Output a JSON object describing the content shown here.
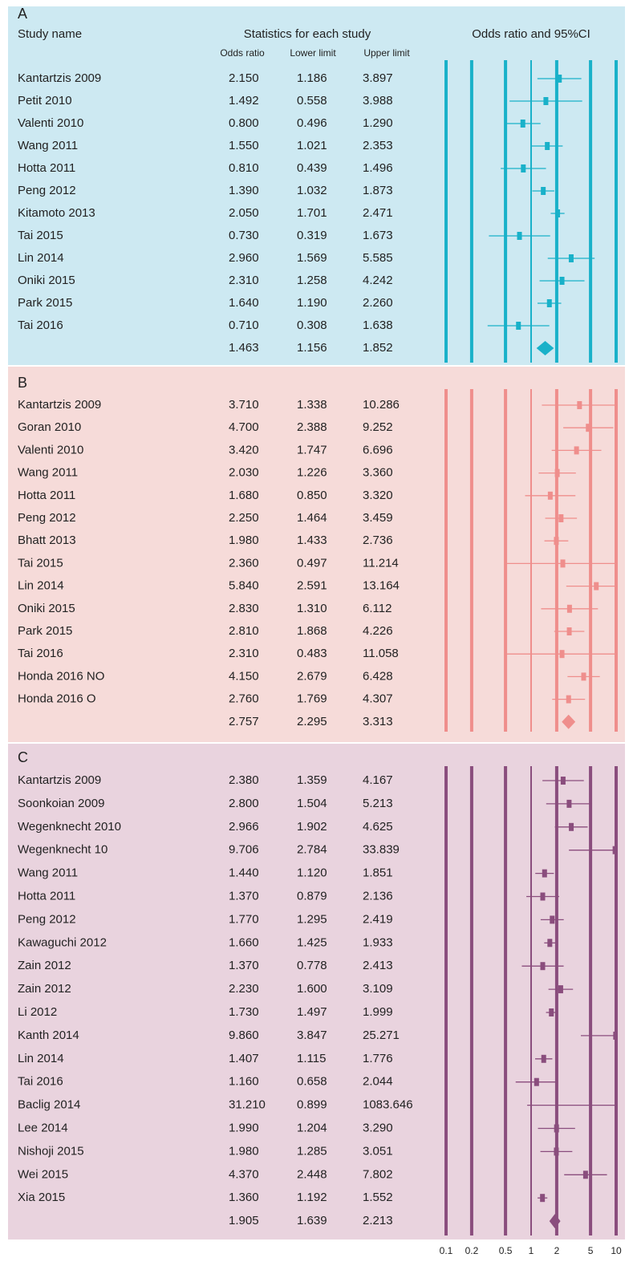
{
  "chart_data": {
    "type": "forest",
    "study_header": "Study name",
    "stats_header": "Statistics for each study",
    "plot_header": "Odds ratio and 95%CI",
    "or_header": "Odds ratio",
    "lower_header": "Lower limit",
    "upper_header": "Upper limit",
    "log_scale": true,
    "xlim": [
      0.1,
      10
    ],
    "xticks": [
      0.1,
      0.2,
      0.5,
      1,
      2,
      5,
      10
    ],
    "panels": [
      {
        "label": "A",
        "color": "#19b1c9",
        "background": "#cde9f2",
        "categories": [
          "Kantartzis 2009",
          "Petit 2010",
          "Valenti 2010",
          "Wang 2011",
          "Hotta 2011",
          "Peng 2012",
          "Kitamoto 2013",
          "Tai 2015",
          "Lin 2014",
          "Oniki 2015",
          "Park 2015",
          "Tai 2016",
          null
        ],
        "values": [
          2.15,
          1.492,
          0.8,
          1.55,
          0.81,
          1.39,
          2.05,
          0.73,
          2.96,
          2.31,
          1.64,
          0.71,
          1.463
        ],
        "value_labels": [
          "2.150",
          "1.492",
          "0.800",
          "1.550",
          "0.810",
          "1.390",
          "2.050",
          "0.730",
          "2.960",
          "2.310",
          "1.640",
          "0.710",
          "1.463"
        ],
        "lower": [
          1.186,
          0.558,
          0.496,
          1.021,
          0.439,
          1.032,
          1.701,
          0.319,
          1.569,
          1.258,
          1.19,
          0.308,
          1.156
        ],
        "lower_labels": [
          "1.186",
          "0.558",
          "0.496",
          "1.021",
          "0.439",
          "1.032",
          "1.701",
          "0.319",
          "1.569",
          "1.258",
          "1.190",
          "0.308",
          "1.156"
        ],
        "upper": [
          3.897,
          3.988,
          1.29,
          2.353,
          1.496,
          1.873,
          2.471,
          1.673,
          5.585,
          4.242,
          2.26,
          1.638,
          1.852
        ],
        "upper_labels": [
          "3.897",
          "3.988",
          "1.290",
          "2.353",
          "1.496",
          "1.873",
          "2.471",
          "1.673",
          "5.585",
          "4.242",
          "2.260",
          "1.638",
          "1.852"
        ]
      },
      {
        "label": "B",
        "color": "#ef8e8c",
        "background": "#f6dbd9",
        "categories": [
          "Kantartzis 2009",
          "Goran 2010",
          "Valenti 2010",
          "Wang 2011",
          "Hotta 2011",
          "Peng 2012",
          "Bhatt 2013",
          "Tai 2015",
          "Lin 2014",
          "Oniki 2015",
          "Park 2015",
          "Tai 2016",
          "Honda 2016 NO",
          "Honda 2016 O",
          null
        ],
        "values": [
          3.71,
          4.7,
          3.42,
          2.03,
          1.68,
          2.25,
          1.98,
          2.36,
          5.84,
          2.83,
          2.81,
          2.31,
          4.15,
          2.76,
          2.757
        ],
        "value_labels": [
          "3.710",
          "4.700",
          "3.420",
          "2.030",
          "1.680",
          "2.250",
          "1.980",
          "2.360",
          "5.840",
          "2.830",
          "2.810",
          "2.310",
          "4.150",
          "2.760",
          "2.757"
        ],
        "lower": [
          1.338,
          2.388,
          1.747,
          1.226,
          0.85,
          1.464,
          1.433,
          0.497,
          2.591,
          1.31,
          1.868,
          0.483,
          2.679,
          1.769,
          2.295
        ],
        "lower_labels": [
          "1.338",
          "2.388",
          "1.747",
          "1.226",
          "0.850",
          "1.464",
          "1.433",
          "0.497",
          "2.591",
          "1.310",
          "1.868",
          "0.483",
          "2.679",
          "1.769",
          "2.295"
        ],
        "upper": [
          10.286,
          9.252,
          6.696,
          3.36,
          3.32,
          3.459,
          2.736,
          11.214,
          13.164,
          6.112,
          4.226,
          11.058,
          6.428,
          4.307,
          3.313
        ],
        "upper_labels": [
          "10.286",
          "9.252",
          "6.696",
          "3.360",
          "3.320",
          "3.459",
          "2.736",
          "11.214",
          "13.164",
          "6.112",
          "4.226",
          "11.058",
          "6.428",
          "4.307",
          "3.313"
        ]
      },
      {
        "label": "C",
        "color": "#8a4d7d",
        "background": "#e9d3de",
        "categories": [
          "Kantartzis 2009",
          "Soonkoian 2009",
          "Wegenknecht 2010",
          "Wegenknecht 10",
          "Wang 2011",
          "Hotta 2011",
          "Peng 2012",
          "Kawaguchi 2012",
          "Zain 2012",
          "Zain 2012",
          "Li 2012",
          "Kanth 2014",
          "Lin 2014",
          "Tai 2016",
          "Baclig 2014",
          "Lee 2014",
          "Nishoji 2015",
          "Wei 2015",
          "Xia 2015",
          null
        ],
        "values": [
          2.38,
          2.8,
          2.966,
          9.706,
          1.44,
          1.37,
          1.77,
          1.66,
          1.37,
          2.23,
          1.73,
          9.86,
          1.407,
          1.16,
          31.21,
          1.99,
          1.98,
          4.37,
          1.36,
          1.905
        ],
        "value_labels": [
          "2.380",
          "2.800",
          "2.966",
          "9.706",
          "1.440",
          "1.370",
          "1.770",
          "1.660",
          "1.370",
          "2.230",
          "1.730",
          "9.860",
          "1.407",
          "1.160",
          "31.210",
          "1.990",
          "1.980",
          "4.370",
          "1.360",
          "1.905"
        ],
        "lower": [
          1.359,
          1.504,
          1.902,
          2.784,
          1.12,
          0.879,
          1.295,
          1.425,
          0.778,
          1.6,
          1.497,
          3.847,
          1.115,
          0.658,
          0.899,
          1.204,
          1.285,
          2.448,
          1.192,
          1.639
        ],
        "lower_labels": [
          "1.359",
          "1.504",
          "1.902",
          "2.784",
          "1.120",
          "0.879",
          "1.295",
          "1.425",
          "0.778",
          "1.600",
          "1.497",
          "3.847",
          "1.115",
          "0.658",
          "0.899",
          "1.204",
          "1.285",
          "2.448",
          "1.192",
          "1.639"
        ],
        "upper": [
          4.167,
          5.213,
          4.625,
          33.839,
          1.851,
          2.136,
          2.419,
          1.933,
          2.413,
          3.109,
          1.999,
          25.271,
          1.776,
          2.044,
          1083.646,
          3.29,
          3.051,
          7.802,
          1.552,
          2.213
        ],
        "upper_labels": [
          "4.167",
          "5.213",
          "4.625",
          "33.839",
          "1.851",
          "2.136",
          "2.419",
          "1.933",
          "2.413",
          "3.109",
          "1.999",
          "25.271",
          "1.776",
          "2.044",
          "1083.646",
          "3.290",
          "3.051",
          "7.802",
          "1.552",
          "2.213"
        ]
      }
    ]
  }
}
